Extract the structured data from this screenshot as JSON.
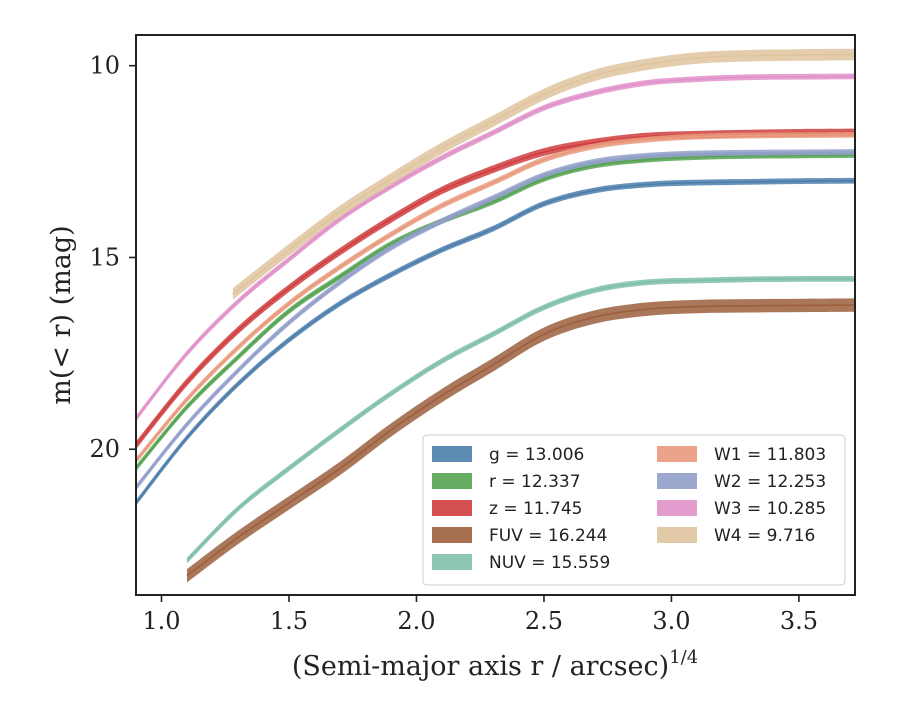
{
  "chart_data": {
    "type": "line",
    "xlabel": "(Semi-major axis r / arcsec)",
    "xlabel_exponent": "1/4",
    "ylabel": "m(< r) (mag)",
    "xlim": [
      0.9,
      3.72
    ],
    "ylim": [
      23.8,
      9.2
    ],
    "y_inverted": true,
    "grid": false,
    "legend_position": "lower-right",
    "x_ticks": [
      "1.0",
      "1.5",
      "2.0",
      "2.5",
      "3.0",
      "3.5"
    ],
    "y_ticks": [
      "10",
      "15",
      "20"
    ],
    "x_tick_values": [
      1.0,
      1.5,
      2.0,
      2.5,
      3.0,
      3.5
    ],
    "y_tick_values": [
      10,
      15,
      20
    ],
    "series": [
      {
        "name": "g = 13.006",
        "color": "#4c7eab",
        "x": [
          0.9,
          1.1,
          1.3,
          1.5,
          1.7,
          1.9,
          2.1,
          2.3,
          2.5,
          2.7,
          2.9,
          3.1,
          3.3,
          3.5,
          3.72
        ],
        "y": [
          21.4,
          19.7,
          18.3,
          17.15,
          16.2,
          15.45,
          14.8,
          14.25,
          13.6,
          13.25,
          13.1,
          13.05,
          13.03,
          13.01,
          13.0
        ],
        "band": 0.15
      },
      {
        "name": "r = 12.337",
        "color": "#55a351",
        "x": [
          0.9,
          1.1,
          1.3,
          1.5,
          1.7,
          1.9,
          2.1,
          2.3,
          2.5,
          2.7,
          2.9,
          3.1,
          3.3,
          3.5,
          3.72
        ],
        "y": [
          20.5,
          18.9,
          17.6,
          16.4,
          15.5,
          14.65,
          14.05,
          13.55,
          12.95,
          12.6,
          12.45,
          12.38,
          12.35,
          12.34,
          12.33
        ],
        "band": 0.15
      },
      {
        "name": "z = 11.745",
        "color": "#d03d3e",
        "x": [
          0.9,
          1.1,
          1.3,
          1.5,
          1.7,
          1.9,
          2.1,
          2.3,
          2.5,
          2.7,
          2.9,
          3.1,
          3.3,
          3.5,
          3.72
        ],
        "y": [
          19.9,
          18.25,
          16.9,
          15.8,
          14.85,
          14.0,
          13.25,
          12.7,
          12.25,
          12.0,
          11.85,
          11.8,
          11.77,
          11.75,
          11.74
        ],
        "band": 0.2
      },
      {
        "name": "FUV = 16.244",
        "color": "#9c5f3d",
        "x": [
          1.1,
          1.3,
          1.5,
          1.7,
          1.9,
          2.1,
          2.3,
          2.5,
          2.7,
          2.9,
          3.1,
          3.3,
          3.5,
          3.72
        ],
        "y": [
          23.3,
          22.3,
          21.4,
          20.5,
          19.5,
          18.6,
          17.8,
          17.0,
          16.55,
          16.35,
          16.28,
          16.26,
          16.25,
          16.24
        ],
        "band": 0.35
      },
      {
        "name": "NUV = 15.559",
        "color": "#7fbfa8",
        "x": [
          1.1,
          1.3,
          1.5,
          1.7,
          1.9,
          2.1,
          2.3,
          2.5,
          2.7,
          2.9,
          3.1,
          3.3,
          3.5,
          3.72
        ],
        "y": [
          22.9,
          21.55,
          20.5,
          19.5,
          18.55,
          17.7,
          17.0,
          16.3,
          15.85,
          15.65,
          15.6,
          15.57,
          15.56,
          15.56
        ],
        "band": 0.15
      },
      {
        "name": "W1 = 11.803",
        "color": "#e99a7d",
        "x": [
          0.9,
          1.1,
          1.3,
          1.5,
          1.7,
          1.9,
          2.1,
          2.3,
          2.5,
          2.7,
          2.9,
          3.1,
          3.3,
          3.5,
          3.72
        ],
        "y": [
          20.3,
          18.7,
          17.35,
          16.2,
          15.25,
          14.4,
          13.65,
          13.05,
          12.45,
          12.1,
          11.93,
          11.85,
          11.82,
          11.81,
          11.8
        ],
        "band": 0.15
      },
      {
        "name": "W2 = 12.253",
        "color": "#929fca",
        "x": [
          0.9,
          1.1,
          1.3,
          1.5,
          1.7,
          1.9,
          2.1,
          2.3,
          2.5,
          2.7,
          2.9,
          3.1,
          3.3,
          3.5,
          3.72
        ],
        "y": [
          21.0,
          19.35,
          17.95,
          16.7,
          15.65,
          14.75,
          14.05,
          13.45,
          12.85,
          12.5,
          12.35,
          12.29,
          12.27,
          12.26,
          12.25
        ],
        "band": 0.15
      },
      {
        "name": "W3 = 10.285",
        "color": "#e091c9",
        "x": [
          0.9,
          1.1,
          1.3,
          1.5,
          1.7,
          1.9,
          2.1,
          2.3,
          2.5,
          2.7,
          2.9,
          3.1,
          3.3,
          3.5,
          3.72
        ],
        "y": [
          19.2,
          17.5,
          16.15,
          15.05,
          14.0,
          13.15,
          12.4,
          11.75,
          11.1,
          10.7,
          10.45,
          10.35,
          10.3,
          10.29,
          10.28
        ],
        "band": 0.15
      },
      {
        "name": "W4 = 9.716",
        "color": "#dfc49e",
        "x": [
          1.28,
          1.5,
          1.7,
          1.9,
          2.1,
          2.3,
          2.5,
          2.7,
          2.9,
          3.1,
          3.3,
          3.5,
          3.72
        ],
        "y": [
          15.95,
          14.8,
          13.8,
          12.95,
          12.15,
          11.45,
          10.75,
          10.25,
          9.97,
          9.8,
          9.74,
          9.72,
          9.71
        ],
        "band": 0.3
      }
    ]
  }
}
